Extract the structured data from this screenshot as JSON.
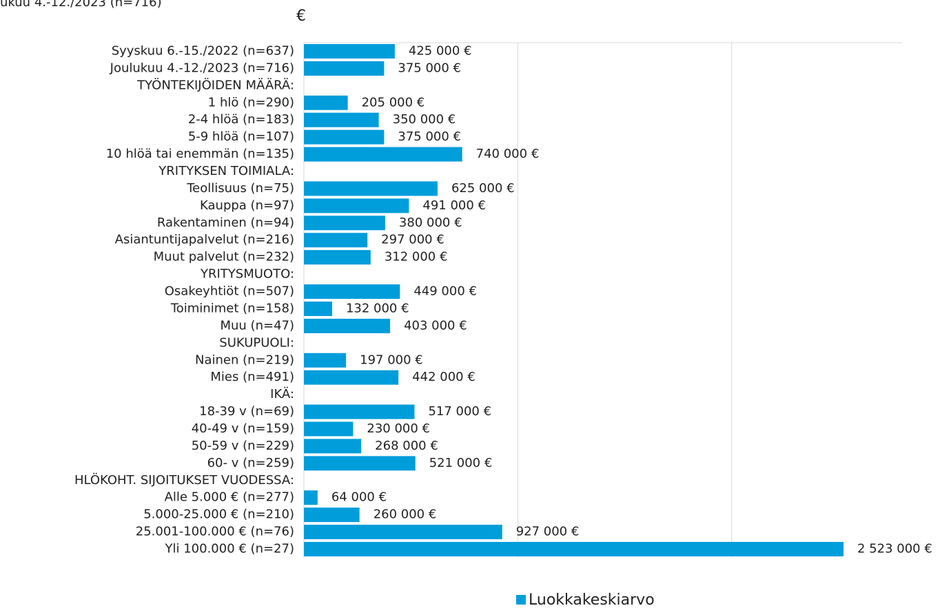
{
  "chart_data": {
    "type": "bar",
    "orientation": "horizontal",
    "subtitle": "ukuu 4.-12./2023 (n=716)",
    "x_label": "€",
    "categories": [
      "Syyskuu 6.-15./2022 (n=637)",
      "Joulukuu 4.-12./2023 (n=716)",
      "TYÖNTEKIJÖIDEN MÄÄRÄ:",
      "1 hlö (n=290)",
      "2-4 hlöä (n=183)",
      "5-9 hlöä (n=107)",
      "10 hlöä tai enemmän (n=135)",
      "YRITYKSEN TOIMIALA:",
      "Teollisuus (n=75)",
      "Kauppa (n=97)",
      "Rakentaminen (n=94)",
      "Asiantuntijapalvelut (n=216)",
      "Muut palvelut (n=232)",
      "YRITYSMUOTO:",
      "Osakeyhtiöt (n=507)",
      "Toiminimet (n=158)",
      "Muu (n=47)",
      "SUKUPUOLI:",
      "Nainen (n=219)",
      "Mies (n=491)",
      "IKÄ:",
      "18-39 v (n=69)",
      "40-49 v (n=159)",
      "50-59 v (n=229)",
      "60- v (n=259)",
      "HLÖKOHT. SIJOITUKSET VUODESSA:",
      "Alle 5.000 € (n=277)",
      "5.000-25.000 € (n=210)",
      "25.001-100.000 € (n=76)",
      "Yli 100.000 € (n=27)"
    ],
    "series": [
      {
        "name": "Luokkakeskiarvo",
        "color": "#009ddb",
        "values": [
          425000,
          375000,
          null,
          205000,
          350000,
          375000,
          740000,
          null,
          625000,
          491000,
          380000,
          297000,
          312000,
          null,
          449000,
          132000,
          403000,
          null,
          197000,
          442000,
          null,
          517000,
          230000,
          268000,
          521000,
          null,
          64000,
          260000,
          927000,
          2523000
        ],
        "value_labels": [
          "425 000 €",
          "375 000 €",
          null,
          "205 000 €",
          "350 000 €",
          "375 000 €",
          "740 000 €",
          null,
          "625 000 €",
          "491 000 €",
          "380 000 €",
          "297 000 €",
          "312 000 €",
          null,
          "449 000 €",
          "132 000 €",
          "403 000 €",
          null,
          "197 000 €",
          "442 000 €",
          null,
          "517 000 €",
          "230 000 €",
          "268 000 €",
          "521 000 €",
          null,
          "64 000 €",
          "260 000 €",
          "927 000 €",
          "2 523 000 €"
        ]
      }
    ],
    "xlim": [
      0,
      2800000
    ],
    "xticks": [
      0,
      1000000,
      2000000
    ],
    "grid": true,
    "legend": "bottom"
  }
}
